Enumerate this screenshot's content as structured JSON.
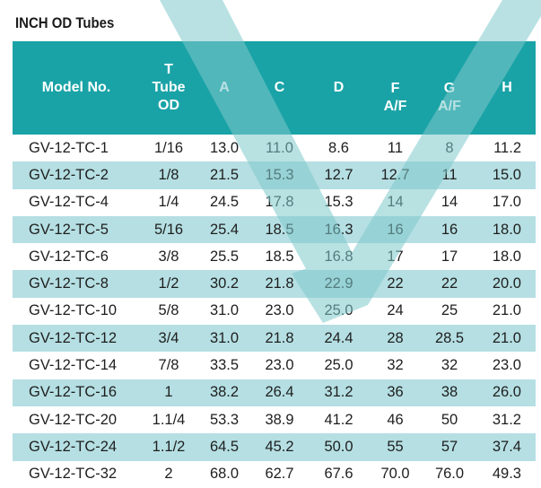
{
  "title": "INCH OD Tubes",
  "columns": [
    {
      "lines": [
        "Model No."
      ]
    },
    {
      "lines": [
        "T",
        "Tube",
        "OD"
      ]
    },
    {
      "lines": [
        "A"
      ]
    },
    {
      "lines": [
        "C"
      ]
    },
    {
      "lines": [
        "D"
      ]
    },
    {
      "lines": [
        "F",
        "A/F"
      ]
    },
    {
      "lines": [
        "G",
        "A/F"
      ]
    },
    {
      "lines": [
        "H"
      ]
    }
  ],
  "rows": [
    [
      "GV-12-TC-1",
      "1/16",
      "13.0",
      "11.0",
      "8.6",
      "11",
      "8",
      "11.2"
    ],
    [
      "GV-12-TC-2",
      "1/8",
      "21.5",
      "15.3",
      "12.7",
      "12.7",
      "11",
      "15.0"
    ],
    [
      "GV-12-TC-4",
      "1/4",
      "24.5",
      "17.8",
      "15.3",
      "14",
      "14",
      "17.0"
    ],
    [
      "GV-12-TC-5",
      "5/16",
      "25.4",
      "18.5",
      "16.3",
      "16",
      "16",
      "18.0"
    ],
    [
      "GV-12-TC-6",
      "3/8",
      "25.5",
      "18.5",
      "16.8",
      "17",
      "17",
      "18.0"
    ],
    [
      "GV-12-TC-8",
      "1/2",
      "30.2",
      "21.8",
      "22.9",
      "22",
      "22",
      "20.0"
    ],
    [
      "GV-12-TC-10",
      "5/8",
      "31.0",
      "23.0",
      "25.0",
      "24",
      "25",
      "21.0"
    ],
    [
      "GV-12-TC-12",
      "3/4",
      "31.0",
      "21.8",
      "24.4",
      "28",
      "28.5",
      "21.0"
    ],
    [
      "GV-12-TC-14",
      "7/8",
      "33.5",
      "23.0",
      "25.0",
      "32",
      "32",
      "23.0"
    ],
    [
      "GV-12-TC-16",
      "1",
      "38.2",
      "26.4",
      "31.2",
      "36",
      "38",
      "26.0"
    ],
    [
      "GV-12-TC-20",
      "1.1/4",
      "53.3",
      "38.9",
      "41.2",
      "46",
      "50",
      "31.2"
    ],
    [
      "GV-12-TC-24",
      "1.1/2",
      "64.5",
      "45.2",
      "50.0",
      "55",
      "57",
      "37.4"
    ],
    [
      "GV-12-TC-32",
      "2",
      "68.0",
      "62.7",
      "67.6",
      "70.0",
      "76.0",
      "49.3"
    ]
  ],
  "colors": {
    "header_bg": "#1aa3a7",
    "stripe_bg": "#b5dfe3",
    "watermark": "#7fc9cc"
  },
  "watermark_icon": "check-mark-watermark"
}
